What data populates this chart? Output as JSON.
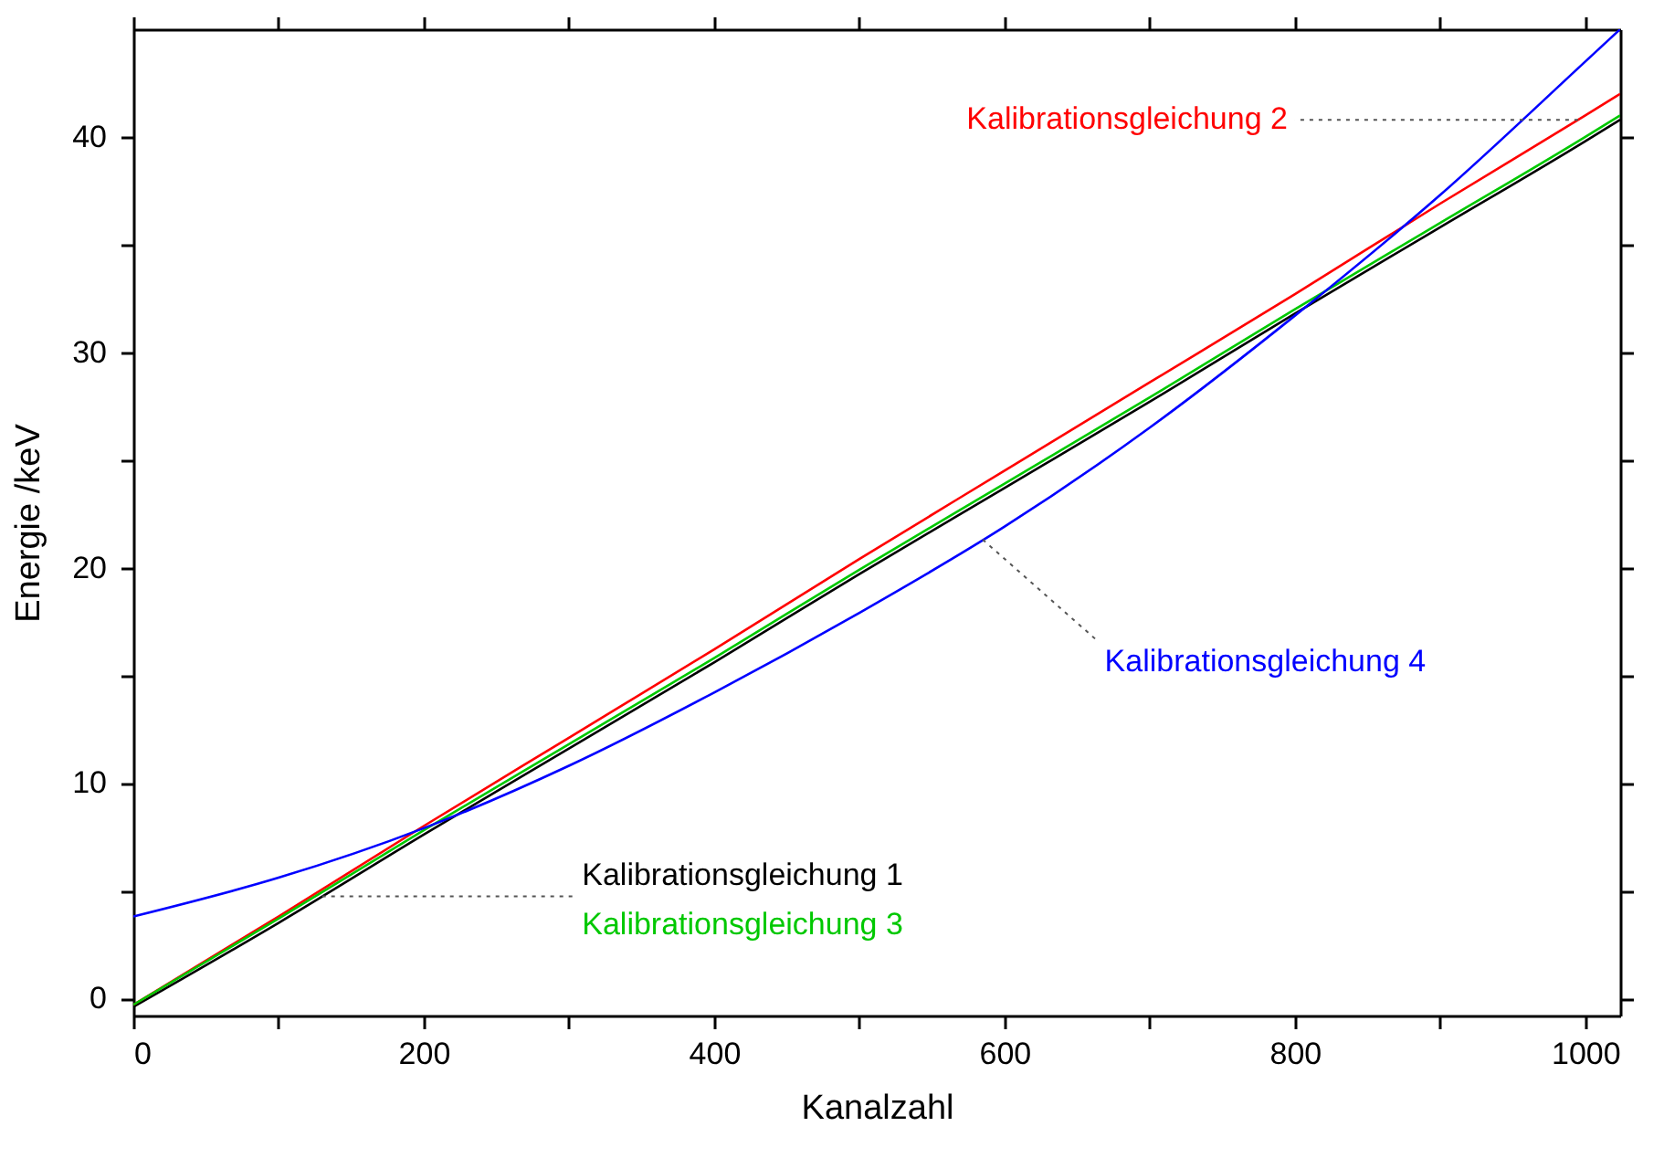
{
  "chart_data": {
    "type": "line",
    "xlabel": "Kanalzahl",
    "ylabel": "Energie /keV",
    "x": [
      0,
      100,
      200,
      300,
      400,
      500,
      600,
      700,
      800,
      900,
      1000,
      1024
    ],
    "series": [
      {
        "name": "Kalibrationsgleichung 1",
        "color": "#000000",
        "values": [
          -0.4,
          3.5,
          7.6,
          11.6,
          15.6,
          19.7,
          23.7,
          27.7,
          31.8,
          35.8,
          39.8,
          40.8
        ]
      },
      {
        "name": "Kalibrationsgleichung 2",
        "color": "#ff0000",
        "values": [
          -0.3,
          3.8,
          8.0,
          12.1,
          16.2,
          20.4,
          24.5,
          28.6,
          32.7,
          36.9,
          41.0,
          42.0
        ]
      },
      {
        "name": "Kalibrationsgleichung 3",
        "color": "#00c800",
        "values": [
          -0.3,
          3.7,
          7.8,
          11.8,
          15.8,
          19.9,
          23.9,
          27.9,
          32.0,
          36.0,
          40.0,
          41.0
        ]
      },
      {
        "name": "Kalibrationsgleichung 4",
        "color": "#0000ff",
        "values": [
          3.8,
          5.6,
          7.9,
          10.8,
          14.2,
          17.9,
          21.9,
          26.5,
          31.7,
          37.3,
          43.5,
          45.0
        ]
      }
    ],
    "xlim": [
      0,
      1024
    ],
    "ylim": [
      -0.8,
      45
    ],
    "xticks": [
      0,
      {
        "value": 100,
        "label": null
      },
      200,
      {
        "value": 300,
        "label": null
      },
      400,
      {
        "value": 500,
        "label": null
      },
      600,
      {
        "value": 700,
        "label": null
      },
      800,
      {
        "value": 900,
        "label": null
      },
      1000
    ],
    "yticks": [
      0,
      {
        "value": 5,
        "label": null
      },
      10,
      {
        "value": 15,
        "label": null
      },
      20,
      {
        "value": 25,
        "label": null
      },
      30,
      {
        "value": 35,
        "label": null
      },
      40
    ],
    "grid": false,
    "marker": "none",
    "line_style": "solid"
  }
}
